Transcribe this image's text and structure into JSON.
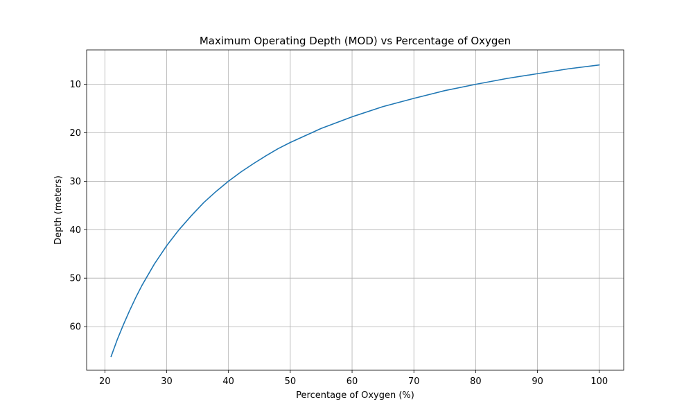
{
  "chart_data": {
    "type": "line",
    "title": "Maximum Operating Depth (MOD) vs Percentage of Oxygen",
    "xlabel": "Percentage of Oxygen (%)",
    "ylabel": "Depth (meters)",
    "xlim": [
      17.05,
      103.95
    ],
    "ylim": [
      69.0,
      2.9
    ],
    "y_inverted": true,
    "grid": true,
    "x_ticks": [
      20,
      30,
      40,
      50,
      60,
      70,
      80,
      90,
      100
    ],
    "y_ticks": [
      10,
      20,
      30,
      40,
      50,
      60
    ],
    "series": [
      {
        "color": "#1f77b4",
        "x": [
          21,
          22,
          23,
          24,
          25,
          26,
          27,
          28,
          29,
          30,
          32,
          34,
          36,
          38,
          40,
          42,
          44,
          46,
          48,
          50,
          55,
          60,
          65,
          70,
          75,
          80,
          85,
          90,
          95,
          100
        ],
        "y": [
          66.2,
          62.7,
          59.6,
          56.7,
          54.0,
          51.5,
          49.3,
          47.1,
          45.2,
          43.3,
          40.0,
          37.1,
          34.4,
          32.1,
          30.0,
          28.1,
          26.4,
          24.8,
          23.3,
          22.0,
          19.1,
          16.7,
          14.6,
          12.9,
          11.3,
          10.0,
          8.8,
          7.8,
          6.8,
          6.0
        ]
      }
    ]
  }
}
